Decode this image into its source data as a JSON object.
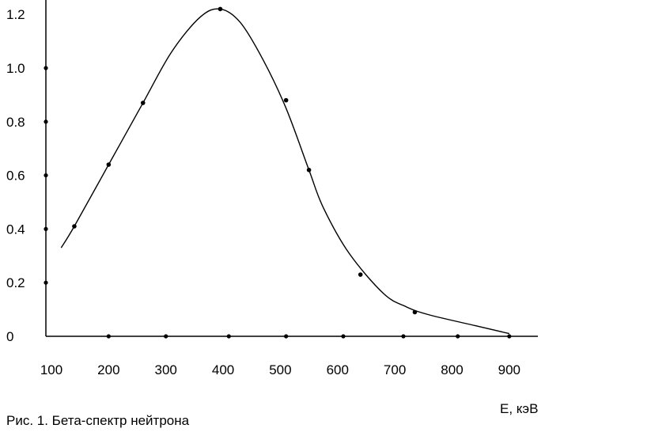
{
  "chart_data": {
    "type": "line",
    "caption": "Рис. 1. Бета-спектр нейтрона",
    "xlabel": "E, кэВ",
    "ylabel": "",
    "xlim": [
      100,
      950
    ],
    "ylim": [
      0,
      1.23
    ],
    "x_ticks": [
      "100",
      "200",
      "300",
      "400",
      "500",
      "600",
      "700",
      "800",
      "900"
    ],
    "y_ticks": [
      "0",
      "0.2",
      "0.4",
      "0.6",
      "0.8",
      "1.0",
      "1.2"
    ],
    "grid": false,
    "legend": "none",
    "series": [
      {
        "curve_x": [
          117,
          140,
          200,
          260,
          310,
          360,
          395,
          430,
          470,
          510,
          550,
          575,
          620,
          680,
          720,
          760,
          840,
          900
        ],
        "curve_y": [
          0.33,
          0.41,
          0.64,
          0.87,
          1.06,
          1.19,
          1.22,
          1.17,
          1.03,
          0.85,
          0.62,
          0.48,
          0.31,
          0.16,
          0.11,
          0.08,
          0.04,
          0.01
        ],
        "points_x": [
          140,
          200,
          260,
          395,
          510,
          550,
          640,
          735
        ],
        "points_y": [
          0.41,
          0.64,
          0.87,
          1.22,
          0.88,
          0.62,
          0.23,
          0.09
        ]
      }
    ],
    "baseline_points_x": [
      200,
      300,
      410,
      510,
      610,
      715,
      810,
      900
    ],
    "axis_points_y": [
      1.0,
      0.8,
      0.6,
      0.4,
      0.2
    ]
  },
  "colors": {
    "line": "#000000",
    "axis": "#000000",
    "background": "#ffffff"
  }
}
